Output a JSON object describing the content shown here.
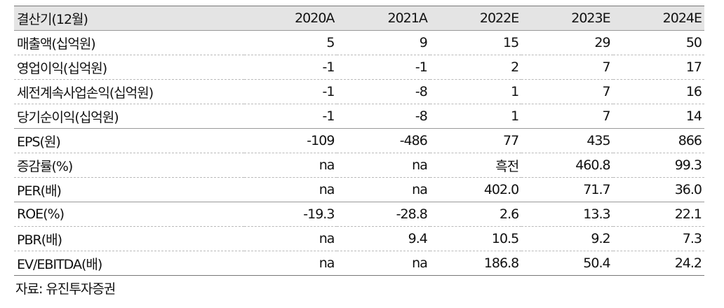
{
  "table": {
    "header": [
      "결산기(12월)",
      "2020A",
      "2021A",
      "2022E",
      "2023E",
      "2024E"
    ],
    "rows": [
      [
        "매출액(십억원)",
        "5",
        "9",
        "15",
        "29",
        "50"
      ],
      [
        "영업이익(십억원)",
        "-1",
        "-1",
        "2",
        "7",
        "17"
      ],
      [
        "세전계속사업손익(십억원)",
        "-1",
        "-8",
        "1",
        "7",
        "16"
      ],
      [
        "당기순이익(십억원)",
        "-1",
        "-8",
        "1",
        "7",
        "14"
      ],
      [
        "EPS(원)",
        "-109",
        "-486",
        "77",
        "435",
        "866"
      ],
      [
        "증감률(%)",
        "na",
        "na",
        "흑전",
        "460.8",
        "99.3"
      ],
      [
        "PER(배)",
        "na",
        "na",
        "402.0",
        "71.7",
        "36.0"
      ],
      [
        "ROE(%)",
        "-19.3",
        "-28.8",
        "2.6",
        "13.3",
        "22.1"
      ],
      [
        "PBR(배)",
        "na",
        "9.4",
        "10.5",
        "9.2",
        "7.3"
      ],
      [
        "EV/EBITDA(배)",
        "na",
        "na",
        "186.8",
        "50.4",
        "24.2"
      ]
    ]
  },
  "source": "자료: 유진투자증권"
}
